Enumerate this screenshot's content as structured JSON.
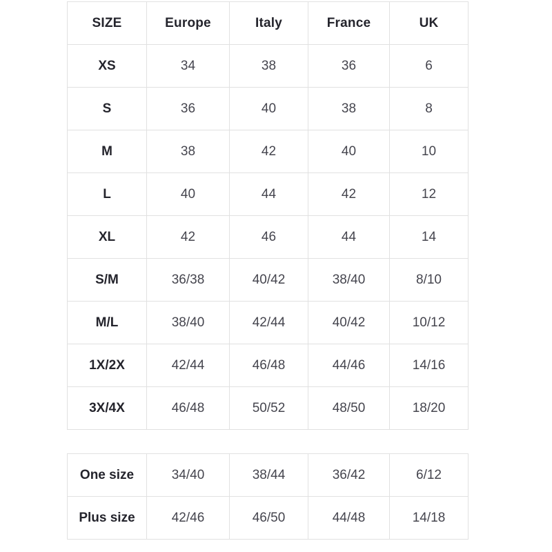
{
  "size_chart": {
    "headers": [
      "SIZE",
      "Europe",
      "Italy",
      "France",
      "UK"
    ],
    "rows": [
      {
        "label": "XS",
        "values": [
          "34",
          "38",
          "36",
          "6"
        ]
      },
      {
        "label": "S",
        "values": [
          "36",
          "40",
          "38",
          "8"
        ]
      },
      {
        "label": "M",
        "values": [
          "38",
          "42",
          "40",
          "10"
        ]
      },
      {
        "label": "L",
        "values": [
          "40",
          "44",
          "42",
          "12"
        ]
      },
      {
        "label": "XL",
        "values": [
          "42",
          "46",
          "44",
          "14"
        ]
      },
      {
        "label": "S/M",
        "values": [
          "36/38",
          "40/42",
          "38/40",
          "8/10"
        ]
      },
      {
        "label": "M/L",
        "values": [
          "38/40",
          "42/44",
          "40/42",
          "10/12"
        ]
      },
      {
        "label": "1X/2X",
        "values": [
          "42/44",
          "46/48",
          "44/46",
          "14/16"
        ]
      },
      {
        "label": "3X/4X",
        "values": [
          "46/48",
          "50/52",
          "48/50",
          "18/20"
        ]
      }
    ]
  },
  "extra_chart": {
    "rows": [
      {
        "label": "One size",
        "values": [
          "34/40",
          "38/44",
          "36/42",
          "6/12"
        ]
      },
      {
        "label": "Plus size",
        "values": [
          "42/46",
          "46/50",
          "44/48",
          "14/18"
        ]
      }
    ]
  },
  "colors": {
    "border": "#e1e1e1",
    "header_text": "#24242c",
    "cell_text": "#45454e",
    "background": "#ffffff"
  }
}
